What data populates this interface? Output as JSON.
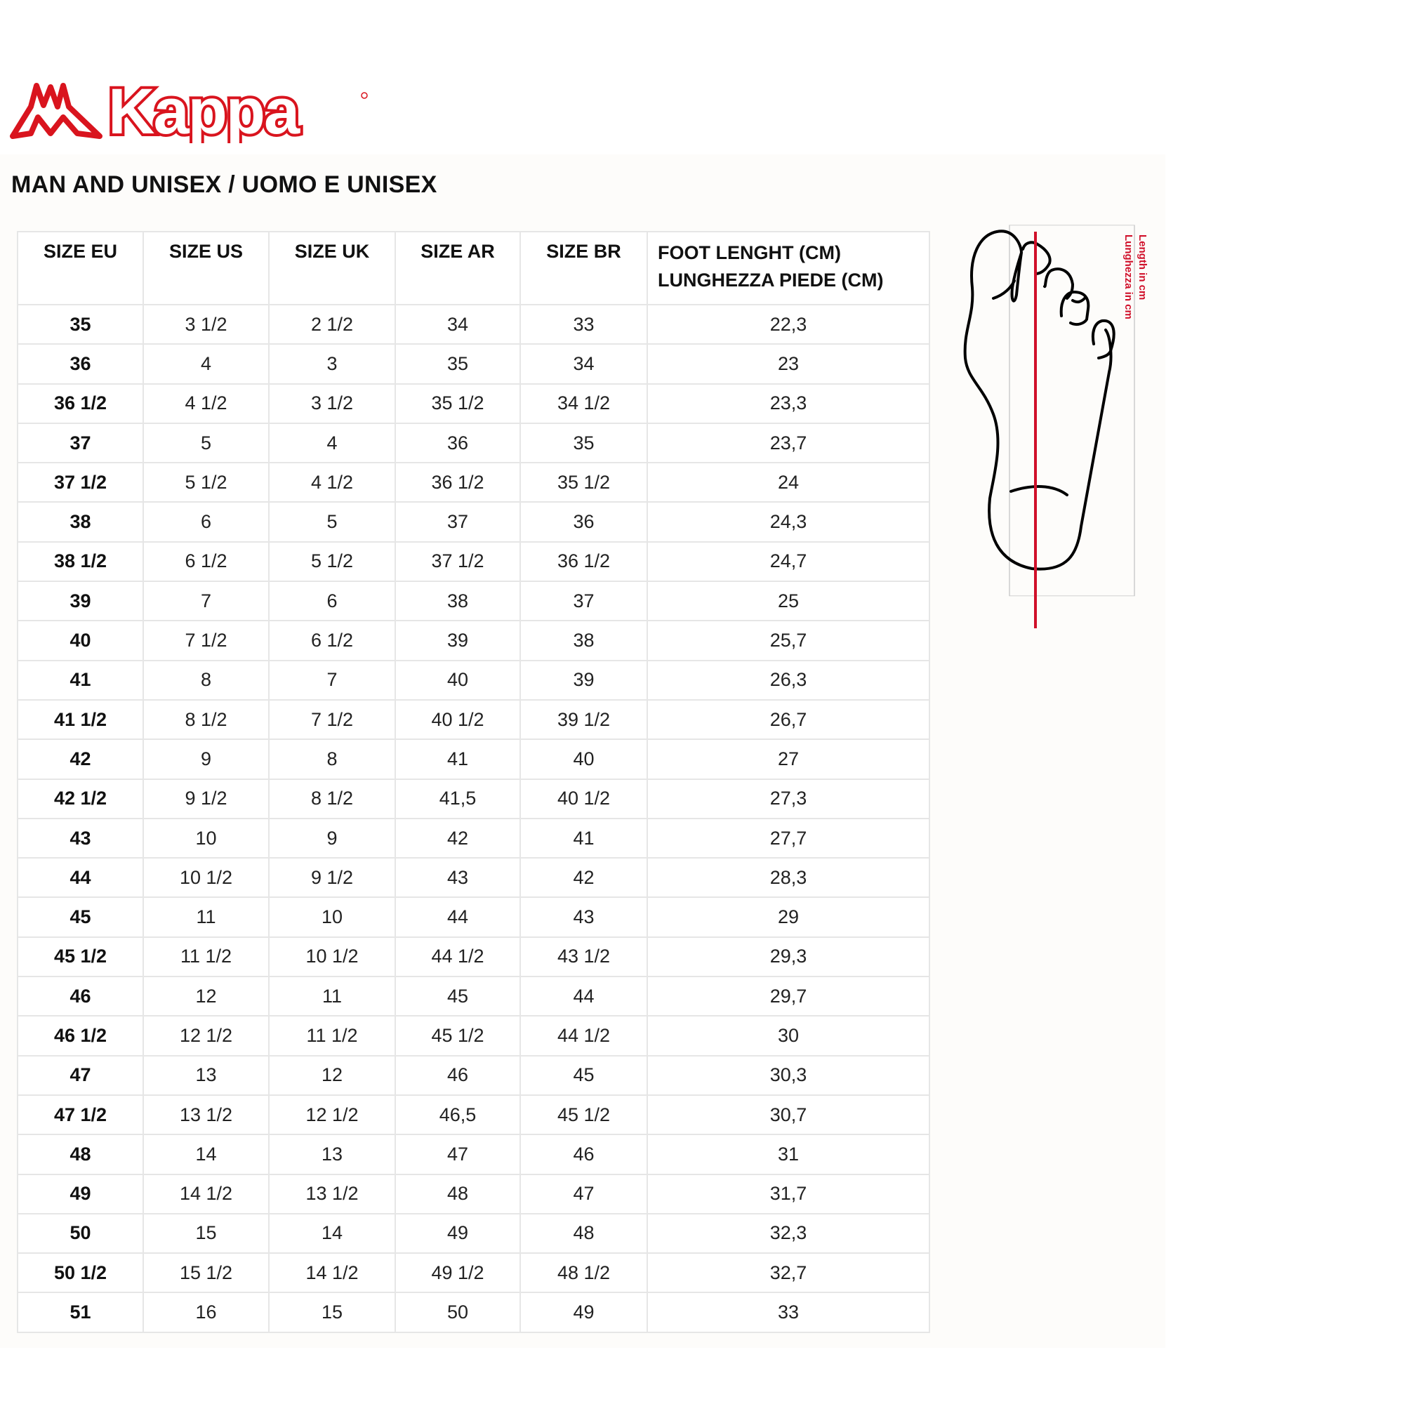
{
  "brand": {
    "name": "Kappa",
    "color": "#d9141e"
  },
  "title": "MAN AND UNISEX / UOMO E UNISEX",
  "table": {
    "headers": [
      "SIZE EU",
      "SIZE US",
      "SIZE UK",
      "SIZE AR",
      "SIZE BR",
      "FOOT LENGHT (CM)",
      "LUNGHEZZA PIEDE (CM)"
    ],
    "rows": [
      [
        "35",
        "3 1/2",
        "2 1/2",
        "34",
        "33",
        "22,3"
      ],
      [
        "36",
        "4",
        "3",
        "35",
        "34",
        "23"
      ],
      [
        "36 1/2",
        "4 1/2",
        "3 1/2",
        "35 1/2",
        "34 1/2",
        "23,3"
      ],
      [
        "37",
        "5",
        "4",
        "36",
        "35",
        "23,7"
      ],
      [
        "37 1/2",
        "5 1/2",
        "4 1/2",
        "36 1/2",
        "35 1/2",
        "24"
      ],
      [
        "38",
        "6",
        "5",
        "37",
        "36",
        "24,3"
      ],
      [
        "38 1/2",
        "6 1/2",
        "5 1/2",
        "37 1/2",
        "36 1/2",
        "24,7"
      ],
      [
        "39",
        "7",
        "6",
        "38",
        "37",
        "25"
      ],
      [
        "40",
        "7 1/2",
        "6 1/2",
        "39",
        "38",
        "25,7"
      ],
      [
        "41",
        "8",
        "7",
        "40",
        "39",
        "26,3"
      ],
      [
        "41 1/2",
        "8 1/2",
        "7 1/2",
        "40 1/2",
        "39 1/2",
        "26,7"
      ],
      [
        "42",
        "9",
        "8",
        "41",
        "40",
        "27"
      ],
      [
        "42 1/2",
        "9 1/2",
        "8 1/2",
        "41,5",
        "40 1/2",
        "27,3"
      ],
      [
        "43",
        "10",
        "9",
        "42",
        "41",
        "27,7"
      ],
      [
        "44",
        "10 1/2",
        "9 1/2",
        "43",
        "42",
        "28,3"
      ],
      [
        "45",
        "11",
        "10",
        "44",
        "43",
        "29"
      ],
      [
        "45 1/2",
        "11 1/2",
        "10 1/2",
        "44 1/2",
        "43 1/2",
        "29,3"
      ],
      [
        "46",
        "12",
        "11",
        "45",
        "44",
        "29,7"
      ],
      [
        "46 1/2",
        "12 1/2",
        "11 1/2",
        "45 1/2",
        "44 1/2",
        "30"
      ],
      [
        "47",
        "13",
        "12",
        "46",
        "45",
        "30,3"
      ],
      [
        "47 1/2",
        "13 1/2",
        "12 1/2",
        "46,5",
        "45 1/2",
        "30,7"
      ],
      [
        "48",
        "14",
        "13",
        "47",
        "46",
        "31"
      ],
      [
        "49",
        "14 1/2",
        "13 1/2",
        "48",
        "47",
        "31,7"
      ],
      [
        "50",
        "15",
        "14",
        "49",
        "48",
        "32,3"
      ],
      [
        "50 1/2",
        "15 1/2",
        "14 1/2",
        "49 1/2",
        "48 1/2",
        "32,7"
      ],
      [
        "51",
        "16",
        "15",
        "50",
        "49",
        "33"
      ]
    ]
  },
  "diagram": {
    "label_en": "Length in cm",
    "label_it": "Lunghezza in cm",
    "measure_color": "#d0102a"
  }
}
